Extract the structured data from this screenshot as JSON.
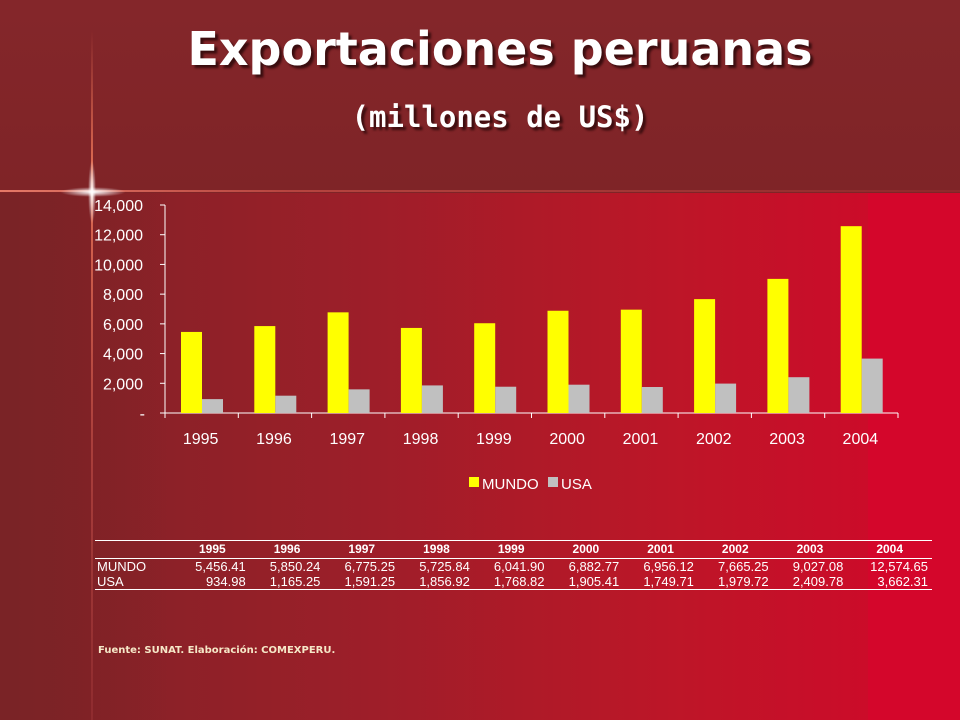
{
  "title": "Exportaciones peruanas",
  "subtitle": "(millones de US$)",
  "chart_data": {
    "type": "bar",
    "categories": [
      "1995",
      "1996",
      "1997",
      "1998",
      "1999",
      "2000",
      "2001",
      "2002",
      "2003",
      "2004"
    ],
    "series": [
      {
        "name": "MUNDO",
        "color": "#ffff00",
        "values": [
          5456.41,
          5850.24,
          6775.25,
          5725.84,
          6041.9,
          6882.77,
          6956.12,
          7665.25,
          9027.08,
          12574.65
        ]
      },
      {
        "name": "USA",
        "color": "#c0c0c0",
        "values": [
          934.98,
          1165.25,
          1591.25,
          1856.92,
          1768.82,
          1905.41,
          1749.71,
          1979.72,
          2409.78,
          3662.31
        ]
      }
    ],
    "ylim": [
      0,
      14000
    ],
    "yticks": [
      0,
      2000,
      4000,
      6000,
      8000,
      10000,
      12000,
      14000
    ],
    "ytick_labels": [
      "-",
      "2,000",
      "4,000",
      "6,000",
      "8,000",
      "10,000",
      "12,000",
      "14,000"
    ],
    "legend_position": "bottom",
    "grid": false
  },
  "table": {
    "headers": [
      "1995",
      "1996",
      "1997",
      "1998",
      "1999",
      "2000",
      "2001",
      "2002",
      "2003",
      "2004"
    ],
    "rows": [
      {
        "label": "MUNDO",
        "values": [
          "5,456.41",
          "5,850.24",
          "6,775.25",
          "5,725.84",
          "6,041.90",
          "6,882.77",
          "6,956.12",
          "7,665.25",
          "9,027.08",
          "12,574.65"
        ]
      },
      {
        "label": "USA",
        "values": [
          "934.98",
          "1,165.25",
          "1,591.25",
          "1,856.92",
          "1,768.82",
          "1,905.41",
          "1,749.71",
          "1,979.72",
          "2,409.78",
          "3,662.31"
        ]
      }
    ]
  },
  "source": "Fuente: SUNAT. Elaboración: COMEXPERU.",
  "colors": {
    "background_top": "#7f2427",
    "background_bright": "#d2072a",
    "text": "#ffffff"
  }
}
